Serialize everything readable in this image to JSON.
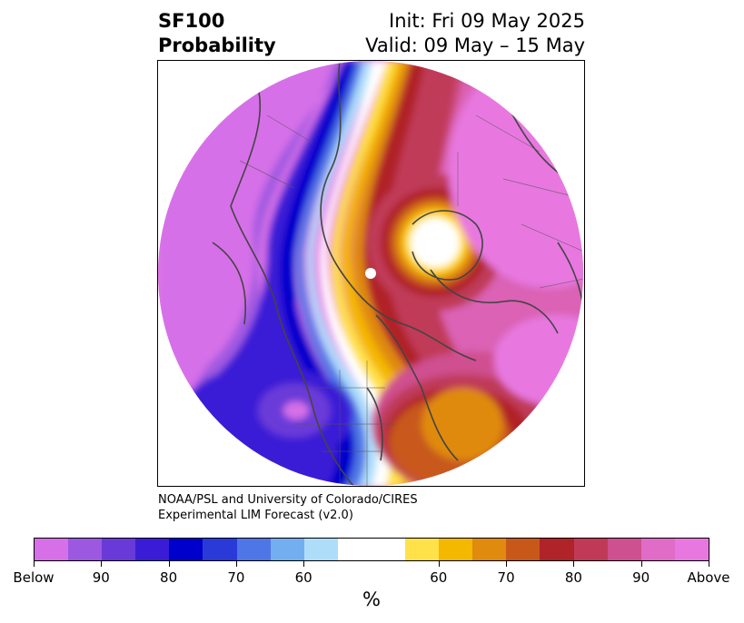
{
  "title": {
    "left_line1": "SF100",
    "left_line2": "Probability",
    "right_line1": "Init: Fri 09 May 2025",
    "right_line2": "Valid: 09 May – 15 May"
  },
  "credit": {
    "line1": "NOAA/PSL and University of Colorado/CIRES",
    "line2": "Experimental LIM Forecast (v2.0)"
  },
  "colorbar": {
    "unit": "%",
    "segments": [
      {
        "color": "#d66fe8"
      },
      {
        "color": "#9c58e0"
      },
      {
        "color": "#6a3ad8"
      },
      {
        "color": "#3a1cd6"
      },
      {
        "color": "#0000cc"
      },
      {
        "color": "#2a3ad8"
      },
      {
        "color": "#4f76e6"
      },
      {
        "color": "#73aef0"
      },
      {
        "color": "#aeddfa"
      },
      {
        "color": "#ffffff",
        "wide": true
      },
      {
        "color": "#ffe24a"
      },
      {
        "color": "#f5b800"
      },
      {
        "color": "#e08a0e"
      },
      {
        "color": "#c8581a"
      },
      {
        "color": "#b02328"
      },
      {
        "color": "#c03a58"
      },
      {
        "color": "#cf5090"
      },
      {
        "color": "#e06cc8"
      },
      {
        "color": "#e878e0"
      }
    ],
    "ticks": [
      {
        "label": "Below",
        "frac": 0.0
      },
      {
        "label": "90",
        "frac": 0.1
      },
      {
        "label": "80",
        "frac": 0.2
      },
      {
        "label": "70",
        "frac": 0.3
      },
      {
        "label": "60",
        "frac": 0.4
      },
      {
        "label": "60",
        "frac": 0.6
      },
      {
        "label": "70",
        "frac": 0.7
      },
      {
        "label": "80",
        "frac": 0.8
      },
      {
        "label": "90",
        "frac": 0.9
      },
      {
        "label": "Above",
        "frac": 1.0
      }
    ]
  }
}
